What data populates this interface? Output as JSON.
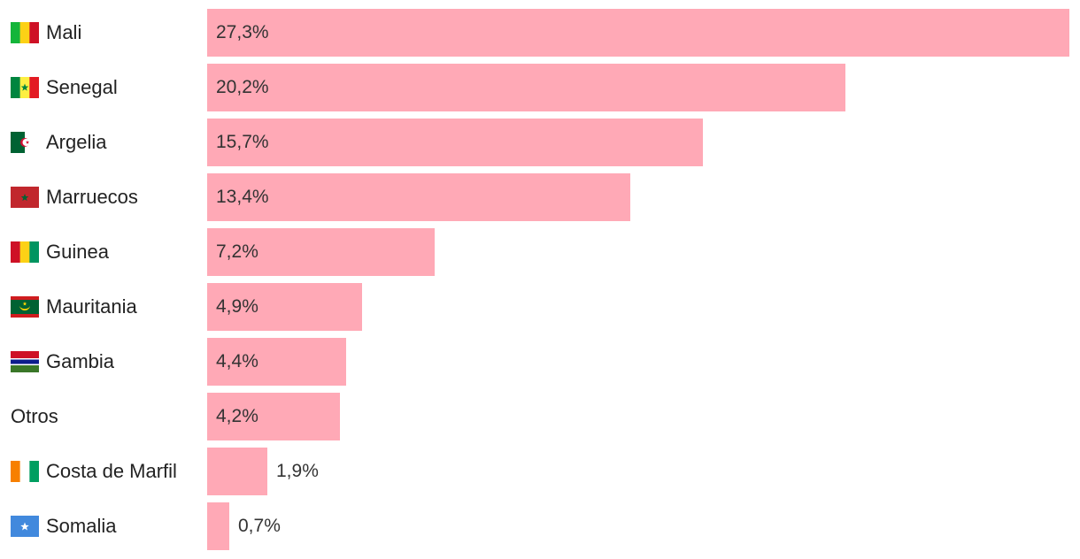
{
  "colors": {
    "bar": "#ffa9b6",
    "text": "#222222"
  },
  "chart_data": {
    "type": "bar",
    "orientation": "horizontal",
    "title": "",
    "xlabel": "",
    "ylabel": "",
    "xlim": [
      0,
      27.3
    ],
    "grid": false,
    "categories": [
      "Mali",
      "Senegal",
      "Argelia",
      "Marruecos",
      "Guinea",
      "Mauritania",
      "Gambia",
      "Otros",
      "Costa de Marfil",
      "Somalia"
    ],
    "values": [
      27.3,
      20.2,
      15.7,
      13.4,
      7.2,
      4.9,
      4.4,
      4.2,
      1.9,
      0.7
    ],
    "value_labels": [
      "27,3%",
      "20,2%",
      "15,7%",
      "13,4%",
      "7,2%",
      "4,9%",
      "4,4%",
      "4,2%",
      "1,9%",
      "0,7%"
    ],
    "flags": [
      "mali-flag-icon",
      "senegal-flag-icon",
      "algeria-flag-icon",
      "morocco-flag-icon",
      "guinea-flag-icon",
      "mauritania-flag-icon",
      "gambia-flag-icon",
      "",
      "ivory-coast-flag-icon",
      "somalia-flag-icon"
    ]
  }
}
